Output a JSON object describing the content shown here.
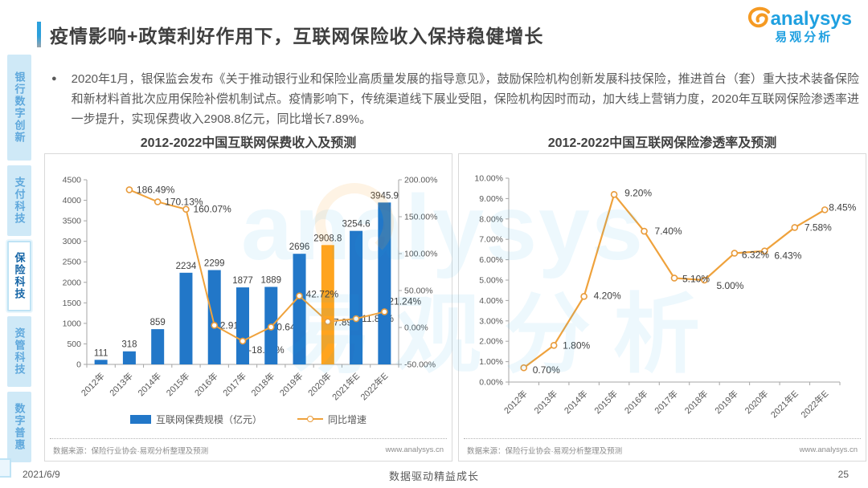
{
  "header": {
    "title": "疫情影响+政策利好作用下，互联网保险收入保持稳健增长",
    "accent_color": "#2BA0DC"
  },
  "logo": {
    "name_en": "analysys",
    "name_zh": "易观分析",
    "blue": "#1FA0E0",
    "orange": "#F59A23"
  },
  "sidebar": {
    "items": [
      {
        "label": "银行数字创新",
        "active": false
      },
      {
        "label": "支付科技",
        "active": false
      },
      {
        "label": "保险科技",
        "active": true
      },
      {
        "label": "资管科技",
        "active": false
      },
      {
        "label": "数字普惠",
        "active": false
      }
    ]
  },
  "bullet": {
    "text": "2020年1月，银保监会发布《关于推动银行业和保险业高质量发展的指导意见》，鼓励保险机构创新发展科技保险，推进首台（套）重大技术装备保险和新材料首批次应用保险补偿机制试点。疫情影响下，传统渠道线下展业受阻，保险机构因时而动，加大线上营销力度，2020年互联网保险渗透率进一步提升，实现保费收入2908.8亿元，同比增长7.89%。"
  },
  "chart_data": [
    {
      "type": "bar",
      "title": "2012-2022中国互联网保费收入及预测",
      "categories": [
        "2012年",
        "2013年",
        "2014年",
        "2015年",
        "2016年",
        "2017年",
        "2018年",
        "2019年",
        "2020年",
        "2021年E",
        "2022年E"
      ],
      "series": [
        {
          "name": "互联网保费规模（亿元）",
          "type": "bar",
          "values": [
            111,
            318,
            859,
            2234,
            2299,
            1877,
            1889,
            2696,
            2908.8,
            3254.6,
            3945.9
          ],
          "labels": [
            "111",
            "318",
            "859",
            "2234",
            "2299",
            "1877",
            "1889",
            "2696",
            "2908.8",
            "3254.6",
            "3945.9"
          ],
          "color": "#2277C8",
          "highlight_index": 8,
          "highlight_color": "#FFA41E"
        },
        {
          "name": "同比增速",
          "type": "line",
          "axis": "right",
          "values": [
            null,
            186.49,
            170.13,
            160.07,
            2.91,
            -18.36,
            0.64,
            42.72,
            7.89,
            11.89,
            21.24
          ],
          "labels": [
            "",
            "186.49%",
            "170.13%",
            "160.07%",
            "2.91%",
            "-18.36%",
            "0.64%",
            "42.72%",
            "7.89%",
            "11.89%",
            "21.24%"
          ],
          "color": "#EFA23C"
        }
      ],
      "y_left": {
        "min": 0,
        "max": 4500,
        "step": 500
      },
      "y_right": {
        "min": -50,
        "max": 200,
        "step": 50,
        "format": "percent2"
      },
      "legend_position": "bottom",
      "grid": false
    },
    {
      "type": "line",
      "title": "2012-2022中国互联网保险渗透率及预测",
      "categories": [
        "2012年",
        "2013年",
        "2014年",
        "2015年",
        "2016年",
        "2017年",
        "2018年",
        "2019年",
        "2020年",
        "2021年E",
        "2022年E"
      ],
      "series": [
        {
          "name": "渗透率",
          "type": "line",
          "values": [
            0.7,
            1.8,
            4.2,
            9.2,
            7.4,
            5.1,
            5.0,
            6.32,
            6.43,
            7.58,
            8.45
          ],
          "labels": [
            "0.70%",
            "1.80%",
            "4.20%",
            "9.20%",
            "7.40%",
            "5.10%",
            "5.00%",
            "6.32%",
            "6.43%",
            "7.58%",
            "8.45%"
          ],
          "color": "#EFA23C"
        }
      ],
      "y": {
        "min": 0,
        "max": 10,
        "step": 1,
        "format": "percent2"
      },
      "grid": false
    }
  ],
  "source_note": {
    "label": "数据来源：保险行业协会·易观分析整理及预测",
    "site": "www.analysys.cn"
  },
  "footer": {
    "date": "2021/6/9",
    "slogan": "数据驱动精益成长",
    "page": "25"
  },
  "colors": {
    "bar_blue": "#2277C8",
    "bar_highlight": "#FFA41E",
    "line_orange": "#EFA23C",
    "sidebar_bg": "#CFE9F7",
    "sidebar_text": "#5FA8DC",
    "sidebar_active_text": "#1565A6"
  }
}
